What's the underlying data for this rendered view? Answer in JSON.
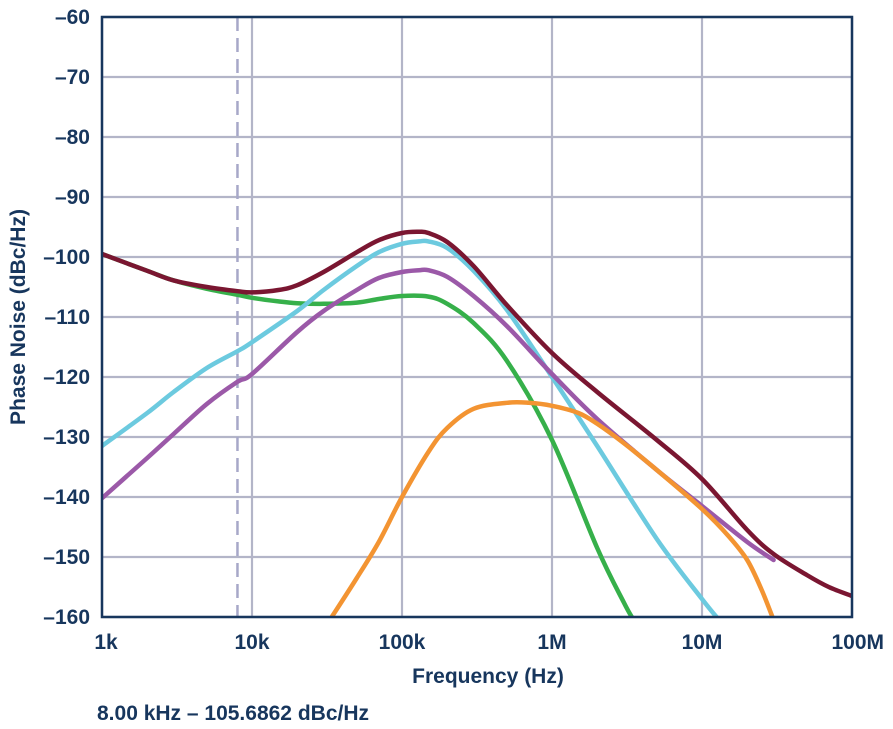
{
  "chart_data": {
    "type": "line",
    "title": "",
    "xlabel": "Frequency (Hz)",
    "ylabel": "Phase Noise (dBc/Hz)",
    "x_scale": "log",
    "xlim": [
      1000,
      100000000
    ],
    "ylim": [
      -160,
      -60
    ],
    "x_ticks": [
      1000,
      10000,
      100000,
      1000000,
      10000000,
      100000000
    ],
    "x_tick_labels": [
      "1k",
      "10k",
      "100k",
      "1M",
      "10M",
      "100M"
    ],
    "y_ticks": [
      -60,
      -70,
      -80,
      -90,
      -100,
      -110,
      -120,
      -130,
      -140,
      -150,
      -160
    ],
    "y_tick_labels": [
      "–60",
      "–70",
      "–80",
      "–90",
      "–100",
      "–110",
      "–120",
      "–130",
      "–140",
      "–150",
      "–160"
    ],
    "grid": true,
    "marker_line": {
      "x": 8000,
      "style": "dashed",
      "color": "#a7a8c8"
    },
    "annotation": "8.00 kHz – 105.6862 dBc/Hz",
    "series": [
      {
        "color": "#36b04a",
        "x": [
          1000,
          2000,
          3000,
          5000,
          8000,
          10000,
          15000,
          20000,
          30000,
          50000,
          70000,
          100000,
          150000,
          200000,
          300000,
          500000,
          1000000,
          2000000,
          3000000,
          3500000
        ],
        "y": [
          -99.5,
          -102.3,
          -103.9,
          -105.3,
          -106.3,
          -106.8,
          -107.4,
          -107.7,
          -107.8,
          -107.6,
          -107.0,
          -106.5,
          -106.6,
          -107.8,
          -111.0,
          -117.3,
          -130.5,
          -148.5,
          -157.5,
          -160.5
        ]
      },
      {
        "color": "#6ccadf",
        "x": [
          1000,
          2000,
          3000,
          5000,
          8000,
          10000,
          20000,
          30000,
          50000,
          70000,
          100000,
          130000,
          150000,
          200000,
          300000,
          500000,
          1000000,
          2000000,
          5000000,
          10000000,
          13000000
        ],
        "y": [
          -131.5,
          -126.0,
          -122.5,
          -118.5,
          -115.7,
          -114.2,
          -109.0,
          -105.5,
          -101.5,
          -99.2,
          -97.8,
          -97.4,
          -97.4,
          -98.5,
          -102.3,
          -108.8,
          -120.0,
          -131.5,
          -147.0,
          -157.0,
          -160.5
        ]
      },
      {
        "color": "#9b59a8",
        "x": [
          1000,
          2000,
          3000,
          5000,
          8000,
          10000,
          20000,
          30000,
          50000,
          70000,
          100000,
          130000,
          150000,
          200000,
          300000,
          500000,
          1000000,
          2000000,
          5000000,
          10000000,
          20000000,
          30000000
        ],
        "y": [
          -140.2,
          -133.5,
          -129.5,
          -124.5,
          -120.8,
          -119.5,
          -112.5,
          -109.0,
          -105.5,
          -103.5,
          -102.5,
          -102.2,
          -102.2,
          -103.3,
          -106.5,
          -111.5,
          -119.5,
          -127.0,
          -135.5,
          -141.5,
          -147.5,
          -150.5
        ]
      },
      {
        "color": "#f39432",
        "x": [
          33000,
          50000,
          70000,
          100000,
          150000,
          200000,
          300000,
          500000,
          700000,
          1000000,
          1500000,
          2000000,
          3000000,
          5000000,
          10000000,
          15000000,
          20000000,
          25000000,
          30000000
        ],
        "y": [
          -160.5,
          -153.5,
          -147.5,
          -140.0,
          -132.5,
          -128.5,
          -125.3,
          -124.3,
          -124.3,
          -124.8,
          -126.0,
          -127.8,
          -131.0,
          -135.5,
          -142.0,
          -146.5,
          -150.5,
          -155.5,
          -160.5
        ]
      },
      {
        "color": "#7a1631",
        "x": [
          1000,
          2000,
          3000,
          5000,
          8000,
          10000,
          15000,
          20000,
          30000,
          50000,
          70000,
          100000,
          130000,
          150000,
          200000,
          300000,
          500000,
          1000000,
          2000000,
          5000000,
          10000000,
          20000000,
          30000000,
          50000000,
          70000000,
          100000000
        ],
        "y": [
          -99.5,
          -102.3,
          -103.9,
          -105.0,
          -105.7,
          -105.9,
          -105.5,
          -104.7,
          -102.5,
          -99.2,
          -97.2,
          -96.0,
          -95.8,
          -96.0,
          -97.5,
          -101.5,
          -108.0,
          -116.0,
          -122.5,
          -130.5,
          -137.0,
          -145.5,
          -149.5,
          -153.0,
          -155.0,
          -156.5
        ]
      }
    ]
  }
}
